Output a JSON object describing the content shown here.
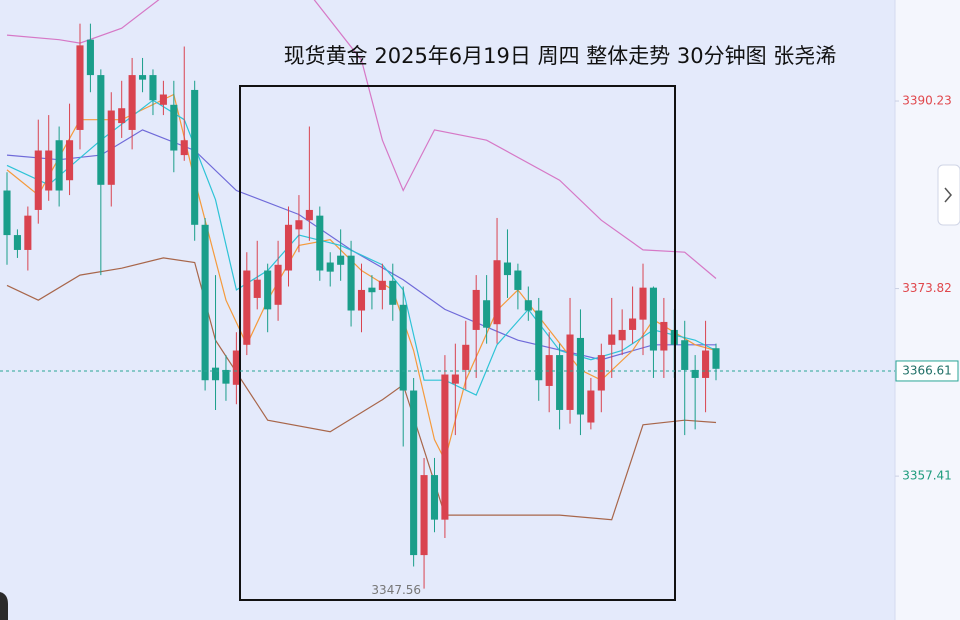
{
  "chart_data": {
    "type": "candlestick",
    "title": "现货黄金 2025年6月19日 周四 整体走势 30分钟图 张尧浠",
    "up_color": "#d9434f",
    "down_color": "#1a9e8a",
    "open": [
      3382.4,
      3378.5,
      3377.2,
      3380.7,
      3382.4,
      3386.8,
      3383.3,
      3387.7,
      3395.6,
      3392.5,
      3382.9,
      3388.3,
      3387.7,
      3392.5,
      3392.5,
      3389.9,
      3389.9,
      3385.5,
      3391.2,
      3379.4,
      3366.9,
      3366.7,
      3365.4,
      3368.9,
      3373.0,
      3375.4,
      3372.4,
      3375.4,
      3379.0,
      3379.8,
      3380.2,
      3376.1,
      3376.7,
      3376.7,
      3371.9,
      3373.9,
      3373.7,
      3374.5,
      3372.4,
      3364.9,
      3350.5,
      3357.5,
      3353.6,
      3365.5,
      3366.7,
      3370.2,
      3372.8,
      3370.7,
      3376.1,
      3375.4,
      3372.8,
      3371.9,
      3365.3,
      3368.0,
      3363.2,
      3369.5,
      3362.1,
      3364.9,
      3368.9,
      3369.3,
      3370.2,
      3371.1,
      3373.9,
      3368.4,
      3370.2,
      3369.3,
      3366.7,
      3366.0,
      3368.6
    ],
    "high": [
      3384.0,
      3379.0,
      3381.0,
      3388.6,
      3389.0,
      3388.0,
      3390.0,
      3397.0,
      3397.0,
      3393.0,
      3391.0,
      3392.0,
      3394.0,
      3394.0,
      3393.0,
      3392.0,
      3392.0,
      3395.0,
      3392.0,
      3380.0,
      3375.0,
      3368.0,
      3370.0,
      3377.0,
      3378.0,
      3376.0,
      3378.0,
      3381.0,
      3382.0,
      3388.0,
      3381.0,
      3377.0,
      3379.0,
      3378.0,
      3376.0,
      3375.0,
      3376.0,
      3376.0,
      3374.0,
      3366.0,
      3359.0,
      3359.0,
      3368.0,
      3369.0,
      3371.0,
      3375.0,
      3375.0,
      3380.0,
      3379.0,
      3376.0,
      3374.0,
      3373.0,
      3370.0,
      3369.0,
      3373.0,
      3372.0,
      3366.0,
      3369.0,
      3373.0,
      3372.0,
      3374.0,
      3376.0,
      3374.0,
      3373.0,
      3372.0,
      3371.0,
      3368.0,
      3371.0,
      3369.0
    ],
    "low": [
      3375.9,
      3376.5,
      3375.4,
      3379.5,
      3381.5,
      3381.0,
      3382.0,
      3386.0,
      3391.0,
      3375.0,
      3381.0,
      3387.0,
      3386.0,
      3391.0,
      3389.0,
      3389.0,
      3384.0,
      3385.0,
      3378.0,
      3364.9,
      3363.2,
      3364.0,
      3363.7,
      3368.0,
      3372.0,
      3370.0,
      3371.0,
      3374.0,
      3377.0,
      3378.0,
      3374.5,
      3374.0,
      3374.5,
      3370.5,
      3370.0,
      3372.0,
      3372.0,
      3371.0,
      3360.0,
      3349.5,
      3347.56,
      3352.5,
      3352.0,
      3361.0,
      3365.0,
      3366.0,
      3369.0,
      3369.0,
      3373.0,
      3372.0,
      3371.0,
      3364.0,
      3363.0,
      3361.5,
      3362.0,
      3361.0,
      3361.5,
      3363.0,
      3366.0,
      3368.0,
      3369.0,
      3368.0,
      3366.0,
      3366.0,
      3366.0,
      3361.0,
      3361.5,
      3363.0,
      3365.8
    ],
    "close": [
      3378.5,
      3377.2,
      3380.2,
      3385.9,
      3385.9,
      3382.4,
      3386.8,
      3395.1,
      3392.5,
      3382.9,
      3389.4,
      3389.6,
      3392.5,
      3392.1,
      3390.3,
      3390.8,
      3385.9,
      3386.8,
      3379.4,
      3365.8,
      3365.8,
      3365.5,
      3368.4,
      3375.4,
      3374.6,
      3372.0,
      3375.9,
      3379.4,
      3379.8,
      3380.7,
      3375.4,
      3375.3,
      3375.9,
      3371.9,
      3373.7,
      3373.5,
      3374.5,
      3372.4,
      3364.9,
      3350.5,
      3357.5,
      3353.6,
      3366.3,
      3366.3,
      3368.9,
      3373.7,
      3370.4,
      3376.3,
      3375.0,
      3373.7,
      3371.9,
      3365.8,
      3368.0,
      3363.2,
      3369.8,
      3362.8,
      3364.9,
      3368.0,
      3369.8,
      3370.2,
      3371.2,
      3373.9,
      3368.4,
      3370.9,
      3368.9,
      3366.7,
      3366.0,
      3368.4,
      3366.8
    ],
    "overlays": [
      {
        "color": "#d678c6",
        "x": [
          0,
          5,
          7,
          11,
          17,
          28,
          34,
          36,
          38,
          41,
          46,
          53,
          57,
          61,
          65,
          68
        ],
        "values": [
          3396.0,
          3395.6,
          3395.3,
          3396.6,
          3400.8,
          3400.8,
          3393.8,
          3386.8,
          3382.4,
          3387.7,
          3386.8,
          3383.3,
          3379.8,
          3377.2,
          3377.0,
          3374.7
        ]
      },
      {
        "color": "#6f6ad9",
        "x": [
          0,
          5,
          9,
          13,
          18,
          22,
          28,
          33,
          38,
          42,
          49,
          57,
          62,
          68
        ],
        "values": [
          3385.5,
          3385.1,
          3385.5,
          3387.7,
          3385.9,
          3382.4,
          3380.3,
          3377.2,
          3374.6,
          3372.0,
          3369.3,
          3367.6,
          3368.9,
          3368.9
        ]
      },
      {
        "color": "#a8664a",
        "x": [
          0,
          3,
          7,
          11,
          15,
          18,
          20,
          25,
          31,
          36,
          38,
          40,
          42,
          47,
          53,
          58,
          61,
          65,
          68
        ],
        "values": [
          3374.1,
          3372.8,
          3375.0,
          3375.6,
          3376.5,
          3376.1,
          3369.3,
          3362.3,
          3361.3,
          3364.1,
          3365.4,
          3359.7,
          3354.0,
          3354.0,
          3354.0,
          3353.6,
          3361.9,
          3362.3,
          3362.1
        ]
      },
      {
        "color": "#f59a3c",
        "x": [
          0,
          3,
          7,
          11,
          16,
          18,
          21,
          23,
          25,
          28,
          31,
          34,
          37,
          39,
          41,
          42,
          44,
          47,
          49,
          52,
          55,
          57,
          60,
          62,
          66,
          68
        ],
        "values": [
          3384.2,
          3382.0,
          3388.6,
          3388.6,
          3390.8,
          3383.3,
          3372.8,
          3368.9,
          3372.8,
          3377.6,
          3378.1,
          3375.4,
          3373.7,
          3368.4,
          3360.6,
          3358.8,
          3365.8,
          3371.9,
          3373.7,
          3370.2,
          3366.7,
          3365.8,
          3368.4,
          3371.1,
          3368.9,
          3368.4
        ]
      },
      {
        "color": "#2ec3d6",
        "x": [
          0,
          4,
          9,
          14,
          17,
          20,
          22,
          25,
          28,
          32,
          36,
          38,
          40,
          42,
          45,
          47,
          50,
          53,
          56,
          59,
          62,
          66,
          68
        ],
        "values": [
          3384.6,
          3382.9,
          3386.8,
          3390.3,
          3388.6,
          3381.6,
          3373.7,
          3375.4,
          3378.5,
          3377.6,
          3375.9,
          3373.7,
          3365.8,
          3365.8,
          3364.5,
          3368.9,
          3372.0,
          3368.4,
          3367.6,
          3368.4,
          3370.2,
          3369.3,
          3368.4
        ]
      }
    ],
    "ylim": [
      3344.82,
      3399.07
    ],
    "yticks": [
      3390.23,
      3373.82,
      3357.41
    ],
    "last_price": 3366.61,
    "low_label": 3347.56
  }
}
